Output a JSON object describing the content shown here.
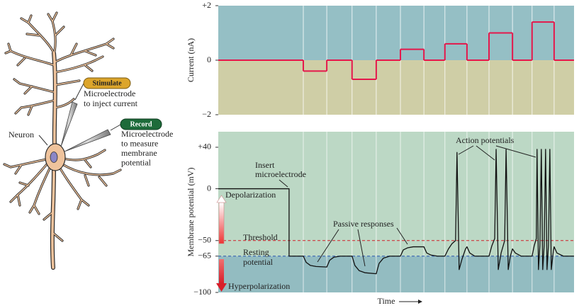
{
  "chart_data": [
    {
      "type": "step",
      "ylabel": "Current (nA)",
      "xlim": [
        0,
        100
      ],
      "ylim": [
        -2,
        2
      ],
      "yticks": [
        {
          "value": -2,
          "label": "−2"
        },
        0,
        {
          "value": 2,
          "label": "+2"
        }
      ],
      "x": [
        0,
        23.9,
        30.5,
        37.6,
        44.4,
        51.2,
        57.8,
        63.7,
        69.9,
        76.1,
        82.7,
        88.2,
        94.4
      ],
      "values": [
        0,
        -0.4,
        0,
        -0.7,
        0,
        0.4,
        0,
        0.6,
        0,
        1.0,
        0,
        1.4,
        0
      ],
      "color": "#e5174b",
      "background_above": "#95bfc5",
      "background_below": "#cfcea6",
      "vgrid": true
    },
    {
      "type": "line",
      "ylabel": "Membrane potential (mV)",
      "xlabel": "Time",
      "xlim": [
        0,
        100
      ],
      "ylim": [
        -100,
        55
      ],
      "yticks": [
        {
          "value": -100,
          "label": "−100"
        },
        {
          "value": -65,
          "label": "−65"
        },
        {
          "value": -50,
          "label": "−50"
        },
        0,
        {
          "value": 40,
          "label": "+40"
        }
      ],
      "x": [
        0,
        19.9,
        19.9,
        23.9,
        24.7,
        25.9,
        27.5,
        30.5,
        31.3,
        32.5,
        34.3,
        37.6,
        38.4,
        39.6,
        41.2,
        44.4,
        45.2,
        46.4,
        48.2,
        51.2,
        52.0,
        53.2,
        54.8,
        57.8,
        58.6,
        59.8,
        61.6,
        63.7,
        64.7,
        65.7,
        66.7,
        67.1,
        67.7,
        68.5,
        69.5,
        69.9,
        70.7,
        72.1,
        76.1,
        76.9,
        77.7,
        78.1,
        78.7,
        79.5,
        80.5,
        80.9,
        81.5,
        82.1,
        82.7,
        83.5,
        85.1,
        88.2,
        88.8,
        89.4,
        89.6,
        90.0,
        90.4,
        90.8,
        91.2,
        91.6,
        92.0,
        92.4,
        92.8,
        93.2,
        93.6,
        94.2,
        94.4,
        95.2,
        97.0,
        100
      ],
      "values": [
        0,
        0,
        -65,
        -65,
        -71,
        -74,
        -75,
        -75.5,
        -69,
        -66,
        -65,
        -65,
        -74,
        -79,
        -81,
        -82,
        -72,
        -67,
        -65,
        -65,
        -59,
        -57,
        -56,
        -56,
        -62,
        -64,
        -65,
        -65,
        -58,
        -53,
        -50,
        35,
        -78,
        -68,
        -58,
        -56,
        -62,
        -65,
        -65,
        -55,
        -48,
        38,
        -78,
        -62,
        -50,
        38,
        -78,
        -65,
        -58,
        -62,
        -65,
        -65,
        -55,
        -48,
        38,
        -78,
        -55,
        38,
        -78,
        -55,
        38,
        -78,
        -55,
        38,
        -78,
        -60,
        -56,
        -62,
        -65,
        -65
      ],
      "color": "#111111",
      "background_above": "#bcd8c5",
      "background_below": "#93bcc1",
      "vgrid_x": [
        23.9,
        30.5,
        37.6,
        44.4,
        51.2,
        57.8,
        63.7,
        69.9,
        76.1,
        82.7,
        88.2,
        94.4
      ],
      "hlines": [
        {
          "label": [
            "Threshold"
          ],
          "value": -50,
          "color": "#d0202a"
        },
        {
          "label": [
            "Resting",
            "potential"
          ],
          "value": -65,
          "color": "#2a55b0"
        }
      ],
      "annotations": {
        "insert": [
          "Insert",
          "microelectrode"
        ],
        "passive": "Passive responses",
        "action": "Action potentials",
        "depolarization": "Depolarization",
        "hyperpolarization": "Hyperpolarization"
      }
    }
  ],
  "diagram": {
    "stimulate": "Stimulate",
    "inject": [
      "Microelectrode",
      "to inject current"
    ],
    "record": "Record",
    "measure": [
      "Microelectrode",
      "to measure",
      "membrane",
      "potential"
    ],
    "neuron": "Neuron"
  }
}
